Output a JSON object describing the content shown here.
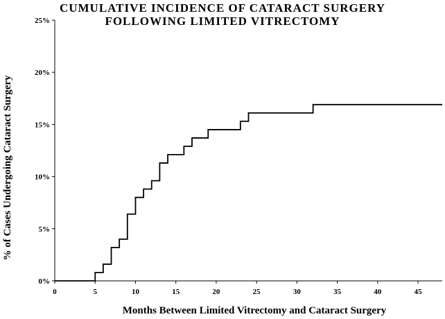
{
  "chart_data": {
    "type": "line",
    "step": true,
    "title": [
      "CUMULATIVE INCIDENCE OF CATARACT SURGERY",
      "FOLLOWING LIMITED VITRECTOMY"
    ],
    "xlabel": "Months Between Limited Vitrectomy and Cataract Surgery",
    "ylabel": "% of Cases Undergoing Cataract Surgery",
    "xlim": [
      0,
      48
    ],
    "ylim": [
      0,
      25
    ],
    "x_ticks": [
      0,
      5,
      10,
      15,
      20,
      25,
      30,
      35,
      40,
      45
    ],
    "y_ticks": [
      0,
      5,
      10,
      15,
      20,
      25
    ],
    "y_tick_labels": [
      "0%",
      "5%",
      "10%",
      "15%",
      "20%",
      "25%"
    ],
    "grid": false,
    "color": "#000000",
    "x": [
      0,
      5,
      6,
      7,
      8,
      9,
      10,
      11,
      12,
      13,
      14,
      16,
      17,
      19,
      23,
      24,
      32,
      48
    ],
    "y": [
      0,
      0.8,
      1.6,
      3.2,
      4.0,
      6.4,
      8.0,
      8.8,
      9.6,
      11.3,
      12.1,
      12.9,
      13.7,
      14.5,
      15.3,
      16.1,
      16.9,
      16.9
    ]
  }
}
